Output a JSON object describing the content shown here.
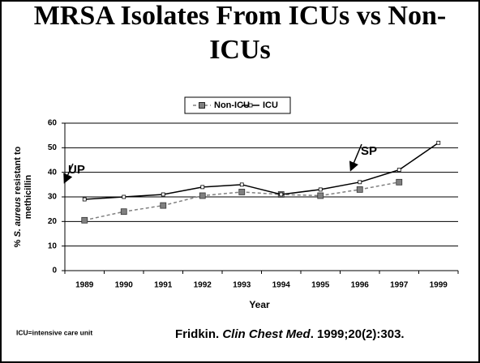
{
  "chart_data": {
    "type": "line",
    "title_lines": [
      "MRSA Isolates From ICUs vs Non-",
      "ICUs"
    ],
    "x_label": "Year",
    "y_label": {
      "parts": [
        "%",
        "S. aureus",
        "resistant to"
      ],
      "line2": "methicillin"
    },
    "categories": [
      "1989",
      "1990",
      "1991",
      "1992",
      "1993",
      "1994",
      "1995",
      "1996",
      "1997",
      "1999"
    ],
    "series": [
      {
        "name": "Non-ICU",
        "color": "#808080",
        "values": [
          20.5,
          24,
          26.5,
          30.5,
          32,
          31,
          30.5,
          33,
          36,
          null
        ]
      },
      {
        "name": "ICU",
        "color": "#000000",
        "values": [
          29,
          30,
          31,
          34,
          35,
          31,
          33,
          36,
          41,
          52
        ]
      }
    ],
    "ylim": [
      0,
      60
    ],
    "yticks": [
      0,
      10,
      20,
      30,
      40,
      50,
      60
    ],
    "grid": true,
    "annotations": [
      "UP",
      "SP"
    ],
    "footnote": "ICU=intensive care unit",
    "citation": [
      "Fridkin.",
      "Clin Chest Med",
      ". 1999;20(2):303."
    ]
  }
}
